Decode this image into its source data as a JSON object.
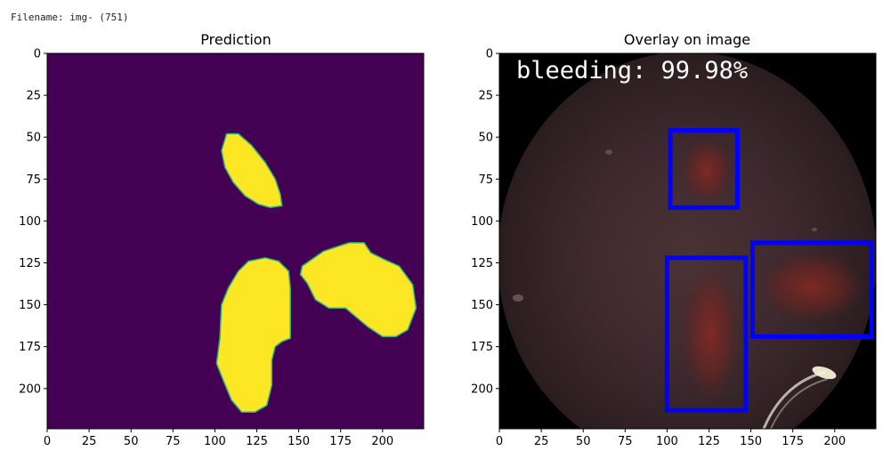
{
  "header": {
    "filename": "Filename: img- (751)"
  },
  "colors": {
    "mask_background": "#440154",
    "mask_foreground": "#fde725",
    "mask_edge": "#2db17e",
    "box": "#0000ff",
    "overlay_text": "#ffffff",
    "frame": "#000000"
  },
  "chart_data": [
    {
      "type": "heatmap",
      "title": "Prediction",
      "xlabel": "",
      "ylabel": "",
      "xlim": [
        0,
        224
      ],
      "ylim": [
        224,
        0
      ],
      "xticks": [
        0,
        25,
        50,
        75,
        100,
        125,
        150,
        175,
        200
      ],
      "yticks": [
        0,
        25,
        50,
        75,
        100,
        125,
        150,
        175,
        200
      ],
      "colormap": "viridis",
      "regions": [
        {
          "label": "region-1",
          "outline": [
            [
              107,
              48
            ],
            [
              114,
              48
            ],
            [
              122,
              55
            ],
            [
              130,
              65
            ],
            [
              136,
              75
            ],
            [
              139,
              84
            ],
            [
              140,
              91
            ],
            [
              133,
              92
            ],
            [
              126,
              90
            ],
            [
              118,
              85
            ],
            [
              111,
              77
            ],
            [
              106,
              68
            ],
            [
              104,
              58
            ]
          ]
        },
        {
          "label": "region-2",
          "outline": [
            [
              120,
              124
            ],
            [
              130,
              122
            ],
            [
              138,
              124
            ],
            [
              144,
              130
            ],
            [
              145,
              140
            ],
            [
              145,
              170
            ],
            [
              140,
              172
            ],
            [
              136,
              175
            ],
            [
              134,
              183
            ],
            [
              134,
              198
            ],
            [
              131,
              210
            ],
            [
              124,
              214
            ],
            [
              116,
              214
            ],
            [
              110,
              207
            ],
            [
              105,
              195
            ],
            [
              101,
              185
            ],
            [
              103,
              170
            ],
            [
              104,
              150
            ],
            [
              108,
              140
            ],
            [
              114,
              130
            ]
          ]
        },
        {
          "label": "region-3",
          "outline": [
            [
              152,
              127
            ],
            [
              165,
              118
            ],
            [
              180,
              113
            ],
            [
              189,
              113
            ],
            [
              193,
              119
            ],
            [
              201,
              123
            ],
            [
              210,
              127
            ],
            [
              218,
              138
            ],
            [
              220,
              152
            ],
            [
              215,
              165
            ],
            [
              208,
              169
            ],
            [
              200,
              169
            ],
            [
              191,
              163
            ],
            [
              178,
              152
            ],
            [
              168,
              152
            ],
            [
              160,
              147
            ],
            [
              155,
              137
            ],
            [
              151,
              132
            ]
          ]
        }
      ]
    },
    {
      "type": "image",
      "title": "Overlay on image",
      "xlabel": "",
      "ylabel": "",
      "xlim": [
        0,
        224
      ],
      "ylim": [
        224,
        0
      ],
      "xticks": [
        0,
        25,
        50,
        75,
        100,
        125,
        150,
        175,
        200
      ],
      "yticks": [
        0,
        25,
        50,
        75,
        100,
        125,
        150,
        175,
        200
      ],
      "annotation": "bleeding: 99.98%",
      "boxes": [
        {
          "x0": 102,
          "y0": 46,
          "x1": 142,
          "y1": 92
        },
        {
          "x0": 100,
          "y0": 122,
          "x1": 147,
          "y1": 213
        },
        {
          "x0": 151,
          "y0": 113,
          "x1": 222,
          "y1": 169
        }
      ]
    }
  ]
}
